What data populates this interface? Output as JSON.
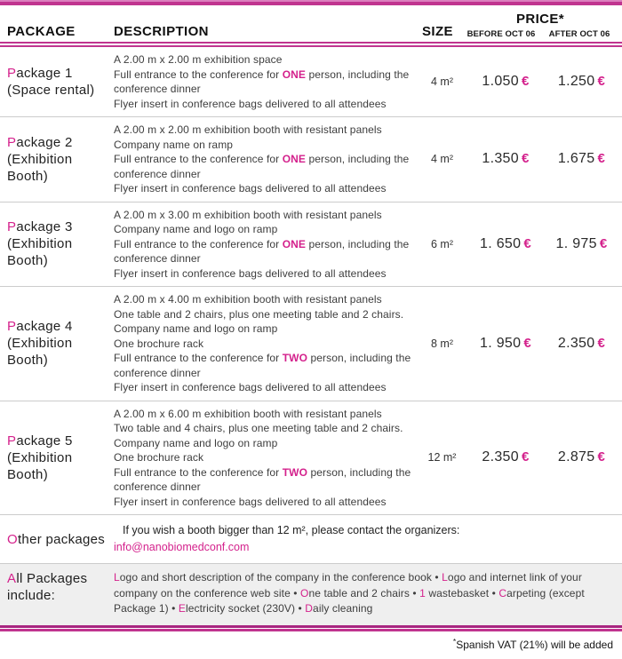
{
  "colors": {
    "accent": "#d4218c",
    "rule": "#c0348f",
    "rule_dark": "#a82580",
    "separator": "#cccccc",
    "gray_bg": "#efefef",
    "text": "#3d3d3d"
  },
  "currency": "€",
  "header": {
    "package": "PACKAGE",
    "description": "DESCRIPTION",
    "size": "SIZE",
    "price": "PRICE*",
    "before": "BEFORE OCT 06",
    "after": "AFTER OCT 06"
  },
  "packages": [
    {
      "initial": "P",
      "name_rest": "ackage 1",
      "subtitle": [
        "(Space rental)"
      ],
      "desc_lines": [
        [
          {
            "t": "A 2.00 m x 2.00 m exhibition space"
          }
        ],
        [
          {
            "t": "Full entrance to the conference for "
          },
          {
            "t": "ONE",
            "a": true,
            "b": true
          },
          {
            "t": " person, including the conference dinner"
          }
        ],
        [
          {
            "t": "Flyer insert in conference bags delivered to all attendees"
          }
        ]
      ],
      "size": "4 m²",
      "before": "1.050",
      "after": "1.250"
    },
    {
      "initial": "P",
      "name_rest": "ackage 2",
      "subtitle": [
        "(Exhibition",
        "Booth)"
      ],
      "desc_lines": [
        [
          {
            "t": "A 2.00 m x 2.00 m exhibition booth with resistant panels"
          }
        ],
        [
          {
            "t": "Company name on ramp"
          }
        ],
        [
          {
            "t": "Full entrance to the conference for "
          },
          {
            "t": "ONE",
            "a": true,
            "b": true
          },
          {
            "t": " person, including the conference dinner"
          }
        ],
        [
          {
            "t": "Flyer insert in conference bags delivered to all attendees"
          }
        ]
      ],
      "size": "4 m²",
      "before": "1.350",
      "after": "1.675"
    },
    {
      "initial": "P",
      "name_rest": "ackage 3",
      "subtitle": [
        "(Exhibition",
        "Booth)"
      ],
      "desc_lines": [
        [
          {
            "t": "A 2.00 m x 3.00 m exhibition booth with resistant panels"
          }
        ],
        [
          {
            "t": "Company name and logo on ramp"
          }
        ],
        [
          {
            "t": "Full entrance to the conference for "
          },
          {
            "t": "ONE",
            "a": true,
            "b": true
          },
          {
            "t": " person, including the conference dinner"
          }
        ],
        [
          {
            "t": "Flyer insert in conference bags delivered to all attendees"
          }
        ]
      ],
      "size": "6 m²",
      "before": "1. 650",
      "after": "1. 975"
    },
    {
      "initial": "P",
      "name_rest": "ackage 4",
      "subtitle": [
        "(Exhibition",
        "Booth)"
      ],
      "desc_lines": [
        [
          {
            "t": "A 2.00 m x 4.00 m exhibition booth with resistant panels"
          }
        ],
        [
          {
            "t": "One table and 2 chairs, plus one meeting table and 2 chairs."
          }
        ],
        [
          {
            "t": "Company name and logo on ramp"
          }
        ],
        [
          {
            "t": "One brochure rack"
          }
        ],
        [
          {
            "t": "Full entrance to the conference for "
          },
          {
            "t": "TWO",
            "a": true,
            "b": true
          },
          {
            "t": " person, including the conference dinner"
          }
        ],
        [
          {
            "t": "Flyer insert in conference bags delivered to all attendees"
          }
        ]
      ],
      "size": "8 m²",
      "before": "1. 950",
      "after": "2.350"
    },
    {
      "initial": "P",
      "name_rest": "ackage 5",
      "subtitle": [
        "(Exhibition",
        "Booth)"
      ],
      "desc_lines": [
        [
          {
            "t": "A 2.00 m x 6.00 m exhibition booth with resistant panels"
          }
        ],
        [
          {
            "t": "Two table and 4 chairs, plus one meeting table and 2 chairs."
          }
        ],
        [
          {
            "t": "Company name and logo on ramp"
          }
        ],
        [
          {
            "t": "One brochure rack"
          }
        ],
        [
          {
            "t": "Full entrance to the conference for "
          },
          {
            "t": "TWO",
            "a": true,
            "b": true
          },
          {
            "t": " person, including the conference dinner"
          }
        ],
        [
          {
            "t": "Flyer insert in conference bags delivered to all attendees"
          }
        ]
      ],
      "size": "12 m²",
      "before": "2.350",
      "after": "2.875"
    }
  ],
  "other": {
    "title_initial": "O",
    "title_rest": "ther packages",
    "line1": "If you wish a booth bigger than 12 m², please contact the organizers:",
    "email": "info@nanobiomedconf.com"
  },
  "all_packages": {
    "title_initial": "A",
    "title_rest": "ll Packages",
    "title_line2": "include:",
    "content": [
      {
        "t": "L",
        "a": true
      },
      {
        "t": "ogo and short description of the company in the conference book • "
      },
      {
        "t": "L",
        "a": true
      },
      {
        "t": "ogo and internet link of your company on the conference web site • "
      },
      {
        "t": "O",
        "a": true
      },
      {
        "t": "ne table and 2 chairs • "
      },
      {
        "t": "1",
        "a": true
      },
      {
        "t": " wastebasket • "
      },
      {
        "t": "C",
        "a": true
      },
      {
        "t": "arpeting (except Package 1) • "
      },
      {
        "t": "E",
        "a": true
      },
      {
        "t": "lectricity socket (230V) • "
      },
      {
        "t": "D",
        "a": true
      },
      {
        "t": "aily cleaning"
      }
    ]
  },
  "footer": {
    "asterisk": "*",
    "text": "Spanish VAT (21%) will be added"
  }
}
